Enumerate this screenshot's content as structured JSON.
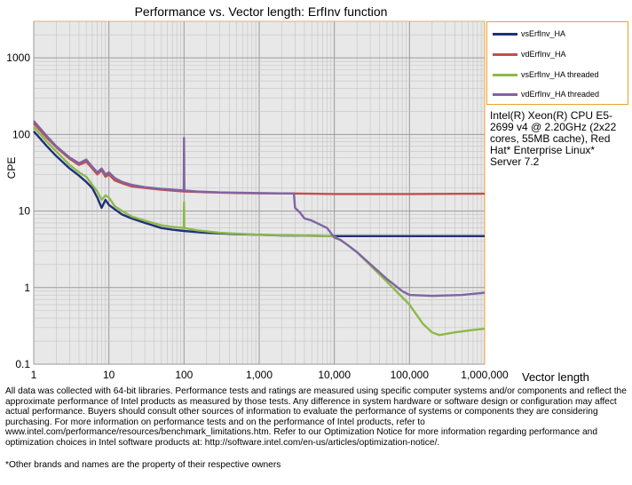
{
  "chart_data": {
    "type": "line",
    "title": "Performance vs. Vector length: ErfInv function",
    "xlabel": "Vector length",
    "ylabel": "CPE",
    "xscale": "log",
    "yscale": "log",
    "xlim": [
      1,
      1000000
    ],
    "ylim": [
      0.1,
      3000
    ],
    "x_ticks": [
      "1",
      "10",
      "100",
      "1,000",
      "10,000",
      "100,000",
      "1,000,000"
    ],
    "y_ticks": [
      "0.1",
      "1",
      "10",
      "100",
      "1000"
    ],
    "grid": true,
    "legend_position": "right",
    "series": [
      {
        "name": "vsErfInv_HA",
        "color": "#1f2f7a",
        "x": [
          1,
          1.5,
          2,
          3,
          4,
          5,
          6,
          7,
          8,
          9,
          10,
          12,
          15,
          20,
          30,
          50,
          70,
          100,
          150,
          200,
          300,
          500,
          1000,
          2000,
          5000,
          10000,
          100000,
          1000000
        ],
        "y": [
          110,
          70,
          52,
          36,
          29,
          24,
          20,
          15,
          11,
          14,
          12,
          10.5,
          9,
          8,
          7,
          6,
          5.7,
          5.5,
          5.3,
          5.2,
          5.1,
          5,
          4.9,
          4.8,
          4.75,
          4.7,
          4.7,
          4.7
        ]
      },
      {
        "name": "vdErfInv_HA",
        "color": "#c0504d",
        "x": [
          1,
          1.5,
          2,
          3,
          4,
          5,
          6,
          7,
          8,
          9,
          10,
          12,
          15,
          20,
          30,
          50,
          70,
          100,
          150,
          200,
          300,
          500,
          1000,
          2000,
          5000,
          10000,
          100000,
          1000000
        ],
        "y": [
          140,
          90,
          68,
          48,
          40,
          44,
          36,
          30,
          34,
          28,
          30,
          25,
          23,
          21,
          20,
          19,
          18.5,
          18,
          17.8,
          17.6,
          17.4,
          17.2,
          17,
          17,
          16.8,
          16.7,
          16.7,
          16.8
        ]
      },
      {
        "name": "vsErfInv_HA threaded",
        "color": "#8db94a",
        "x": [
          1,
          1.5,
          2,
          3,
          4,
          5,
          6,
          7,
          8,
          9,
          10,
          12,
          15,
          20,
          30,
          50,
          70,
          99,
          100,
          101,
          150,
          300,
          1000,
          3000,
          9000,
          10000,
          12000,
          15000,
          20000,
          50000,
          100000,
          150000,
          200000,
          250000,
          400000,
          700000,
          1000000
        ],
        "y": [
          125,
          80,
          60,
          40,
          32,
          28,
          22,
          18,
          14,
          16,
          15,
          11.5,
          10,
          8.5,
          7.5,
          6.5,
          6.2,
          6,
          13,
          6,
          5.6,
          5.2,
          4.9,
          4.8,
          4.7,
          4.6,
          4.2,
          3.6,
          2.9,
          1.2,
          0.6,
          0.34,
          0.26,
          0.24,
          0.26,
          0.28,
          0.29
        ]
      },
      {
        "name": "vdErfInv_HA threaded",
        "color": "#8064a2",
        "x": [
          1,
          1.5,
          2,
          3,
          4,
          5,
          6,
          7,
          8,
          9,
          10,
          12,
          15,
          20,
          30,
          50,
          70,
          99,
          100,
          101,
          150,
          300,
          1000,
          2000,
          2900,
          3000,
          3500,
          4000,
          5000,
          8000,
          10000,
          12000,
          15000,
          20000,
          50000,
          80000,
          100000,
          200000,
          500000,
          900000,
          1000000
        ],
        "y": [
          150,
          95,
          70,
          50,
          42,
          47,
          38,
          32,
          36,
          30,
          32,
          27,
          24,
          22,
          20.5,
          19.5,
          19,
          18.5,
          90,
          18.5,
          18,
          17.5,
          17.2,
          17,
          17,
          11,
          9.5,
          8,
          7.5,
          6,
          4.5,
          4.2,
          3.6,
          2.9,
          1.3,
          0.9,
          0.8,
          0.78,
          0.8,
          0.85,
          0.86
        ]
      }
    ]
  },
  "legend": {
    "items": [
      "vsErfInv_HA",
      "vdErfInv_HA",
      "vsErfInv_HA threaded",
      "vdErfInv_HA threaded"
    ]
  },
  "cpu_note": "Intel(R) Xeon(R) CPU E5-2699 v4 @ 2.20GHz (2x22 cores, 55MB cache), Red Hat* Enterprise Linux* Server 7.2",
  "disclaimer": "All data was collected with 64-bit libraries. Performance tests and ratings are measured using specific computer systems and/or components and reflect the approximate performance of Intel products as measured by those tests. Any difference in system hardware or software design or configuration may affect actual performance. Buyers should consult other sources of information to evaluate the performance of systems or components they are considering purchasing. For more information on performance tests and on the performance of Intel products, refer to www.intel.com/performance/resources/benchmark_limitations.htm. Refer to our Optimization Notice for more information regarding performance and optimization choices in Intel software products at: http://software.intel.com/en-us/articles/optimization-notice/.",
  "trademark": "*Other brands and names are the property of their respective owners"
}
